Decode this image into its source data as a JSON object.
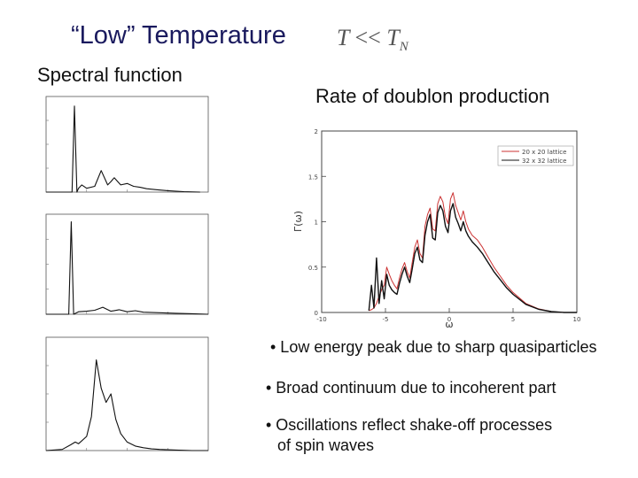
{
  "slide": {
    "title": "“Low” Temperature",
    "formula": {
      "lhs": "T",
      "op": "<<",
      "rhs": "T",
      "rhs_sub": "N"
    },
    "left_label": "Spectral function",
    "right_label": "Rate of doublon production",
    "bullets": [
      "• Low energy peak due to sharp quasiparticles",
      "• Broad continuum due to incoherent part",
      "• Oscillations reflect shake-off processes",
      "of spin waves"
    ]
  },
  "chart_data": [
    {
      "type": "line",
      "title": "Rate of doublon production",
      "xlabel": "ω",
      "ylabel": "Γ(ω)",
      "xlim": [
        -10,
        10
      ],
      "ylim": [
        0,
        2
      ],
      "xticks": [
        "-10",
        "-5",
        "0",
        "5",
        "10"
      ],
      "yticks": [
        "0",
        "0.5",
        "1",
        "1.5",
        "2"
      ],
      "legend": {
        "position": "top-right",
        "entries": [
          "20 x 20 lattice",
          "32 x 32 lattice"
        ]
      },
      "series": [
        {
          "name": "20 x 20 lattice",
          "color": "#cc3333",
          "x": [
            -6.3,
            -6.1,
            -5.9,
            -5.7,
            -5.5,
            -5.3,
            -5.1,
            -4.9,
            -4.7,
            -4.5,
            -4.3,
            -4.1,
            -3.9,
            -3.7,
            -3.5,
            -3.3,
            -3.1,
            -2.9,
            -2.7,
            -2.5,
            -2.3,
            -2.1,
            -1.9,
            -1.7,
            -1.5,
            -1.3,
            -1.1,
            -0.9,
            -0.7,
            -0.5,
            -0.3,
            -0.1,
            0.1,
            0.3,
            0.5,
            0.7,
            0.9,
            1.1,
            1.3,
            1.5,
            1.8,
            2.2,
            2.6,
            3.0,
            3.5,
            4.0,
            4.5,
            5.0,
            6.0,
            7.0,
            8.0,
            9.0,
            9.5,
            10.0
          ],
          "y": [
            0.02,
            0.03,
            0.05,
            0.1,
            0.18,
            0.25,
            0.3,
            0.5,
            0.42,
            0.35,
            0.3,
            0.26,
            0.38,
            0.48,
            0.55,
            0.45,
            0.38,
            0.55,
            0.72,
            0.8,
            0.65,
            0.6,
            0.95,
            1.08,
            1.15,
            0.92,
            0.9,
            1.2,
            1.28,
            1.22,
            1.05,
            0.98,
            1.25,
            1.32,
            1.18,
            1.1,
            1.02,
            1.12,
            1.0,
            0.92,
            0.85,
            0.8,
            0.72,
            0.62,
            0.5,
            0.4,
            0.3,
            0.22,
            0.1,
            0.04,
            0.01,
            0.0,
            0.0,
            0.0
          ]
        },
        {
          "name": "32 x 32 lattice",
          "color": "#111111",
          "x": [
            -6.3,
            -6.1,
            -5.9,
            -5.7,
            -5.5,
            -5.3,
            -5.1,
            -4.9,
            -4.7,
            -4.5,
            -4.3,
            -4.1,
            -3.9,
            -3.7,
            -3.5,
            -3.3,
            -3.1,
            -2.9,
            -2.7,
            -2.5,
            -2.3,
            -2.1,
            -1.9,
            -1.7,
            -1.5,
            -1.3,
            -1.1,
            -0.9,
            -0.7,
            -0.5,
            -0.3,
            -0.1,
            0.1,
            0.3,
            0.5,
            0.7,
            0.9,
            1.1,
            1.3,
            1.5,
            1.8,
            2.2,
            2.6,
            3.0,
            3.5,
            4.0,
            4.5,
            5.0,
            6.0,
            7.0,
            8.0,
            9.0,
            9.5,
            10.0
          ],
          "y": [
            0.02,
            0.3,
            0.05,
            0.6,
            0.1,
            0.35,
            0.15,
            0.42,
            0.3,
            0.25,
            0.22,
            0.2,
            0.32,
            0.42,
            0.5,
            0.4,
            0.33,
            0.48,
            0.65,
            0.72,
            0.58,
            0.55,
            0.85,
            1.0,
            1.08,
            0.82,
            0.8,
            1.1,
            1.18,
            1.12,
            0.95,
            0.88,
            1.12,
            1.2,
            1.05,
            0.98,
            0.9,
            1.0,
            0.9,
            0.84,
            0.78,
            0.72,
            0.65,
            0.56,
            0.45,
            0.36,
            0.27,
            0.2,
            0.09,
            0.035,
            0.01,
            0.0,
            0.0,
            0.0
          ]
        }
      ]
    },
    {
      "type": "line",
      "title": "Spectral function (panel 1)",
      "xlim": [
        -5,
        5
      ],
      "ylim": [
        0,
        2
      ],
      "x": [
        -5.0,
        -4.0,
        -3.4,
        -3.25,
        -3.1,
        -3.0,
        -2.8,
        -2.5,
        -2.0,
        -1.6,
        -1.2,
        -1.0,
        -0.8,
        -0.4,
        0.0,
        0.4,
        0.8,
        1.2,
        1.8,
        2.5,
        3.5,
        4.5
      ],
      "y": [
        0.0,
        0.0,
        0.0,
        1.8,
        0.0,
        0.08,
        0.15,
        0.08,
        0.12,
        0.45,
        0.15,
        0.22,
        0.3,
        0.15,
        0.18,
        0.12,
        0.1,
        0.07,
        0.05,
        0.03,
        0.01,
        0.0
      ]
    },
    {
      "type": "line",
      "title": "Spectral function (panel 2)",
      "xlim": [
        -5,
        5
      ],
      "ylim": [
        0,
        2
      ],
      "x": [
        -5.0,
        -4.0,
        -3.6,
        -3.45,
        -3.3,
        -3.0,
        -2.5,
        -2.0,
        -1.5,
        -1.0,
        -0.5,
        0.0,
        0.5,
        1.0,
        2.0,
        3.0,
        4.0,
        5.0
      ],
      "y": [
        0.0,
        0.0,
        0.0,
        1.85,
        0.0,
        0.05,
        0.06,
        0.08,
        0.14,
        0.06,
        0.09,
        0.05,
        0.07,
        0.04,
        0.03,
        0.02,
        0.01,
        0.0
      ]
    },
    {
      "type": "line",
      "title": "Spectral function (panel 3)",
      "xlim": [
        -5,
        5
      ],
      "ylim": [
        0,
        2
      ],
      "x": [
        -5.0,
        -4.0,
        -3.5,
        -3.2,
        -3.0,
        -2.5,
        -2.2,
        -1.9,
        -1.6,
        -1.3,
        -1.0,
        -0.7,
        -0.4,
        0.0,
        0.5,
        1.0,
        1.5,
        2.0,
        3.0,
        4.0,
        5.0
      ],
      "y": [
        0.0,
        0.02,
        0.1,
        0.15,
        0.12,
        0.25,
        0.6,
        1.6,
        1.1,
        0.85,
        1.0,
        0.55,
        0.3,
        0.15,
        0.08,
        0.05,
        0.03,
        0.02,
        0.01,
        0.0,
        0.0
      ]
    }
  ]
}
